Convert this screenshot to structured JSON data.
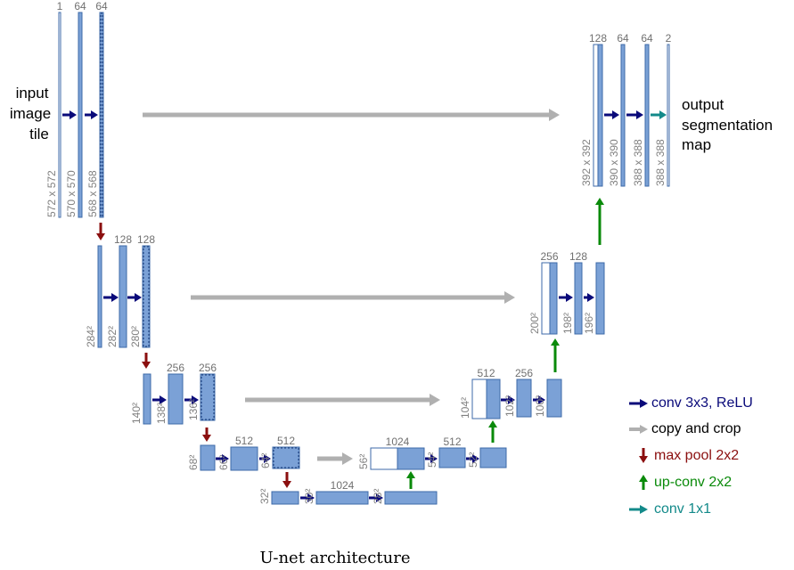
{
  "title": "U-net architecture",
  "input_label": [
    "input",
    "image",
    "tile"
  ],
  "output_label": [
    "output",
    "segmentation",
    "map"
  ],
  "colors": {
    "block_fill": "#7ba1d6",
    "block_stroke": "#3c6aa8",
    "conv": "#0a0a7a",
    "copy": "#b0b0b0",
    "pool": "#8b0f0f",
    "upconv": "#0a8a0a",
    "conv1x1": "#138a8a"
  },
  "blocks": [
    {
      "id": "L1a",
      "channels": "1",
      "size": "572 x 572"
    },
    {
      "id": "L1b",
      "channels": "64",
      "size": "570 x 570"
    },
    {
      "id": "L1c",
      "channels": "64",
      "size": "568 x 568"
    },
    {
      "id": "L2a",
      "channels": "",
      "size": "284²"
    },
    {
      "id": "L2b",
      "channels": "128",
      "size": "282²"
    },
    {
      "id": "L2c",
      "channels": "128",
      "size": "280²"
    },
    {
      "id": "L3a",
      "channels": "",
      "size": "140²"
    },
    {
      "id": "L3b",
      "channels": "256",
      "size": "138²"
    },
    {
      "id": "L3c",
      "channels": "256",
      "size": "136²"
    },
    {
      "id": "L4a",
      "channels": "",
      "size": "68²"
    },
    {
      "id": "L4b",
      "channels": "512",
      "size": "66²"
    },
    {
      "id": "L4c",
      "channels": "512",
      "size": "64²"
    },
    {
      "id": "B1",
      "channels": "",
      "size": "32²"
    },
    {
      "id": "B2",
      "channels": "1024",
      "size": "30²"
    },
    {
      "id": "B3",
      "channels": "",
      "size": "28²"
    },
    {
      "id": "U4a",
      "channels": "1024",
      "size": "56²"
    },
    {
      "id": "U4b",
      "channels": "512",
      "size": "54²"
    },
    {
      "id": "U4c",
      "channels": "",
      "size": "52²"
    },
    {
      "id": "U3a",
      "channels": "512",
      "size": "104²"
    },
    {
      "id": "U3b",
      "channels": "256",
      "size": "102²"
    },
    {
      "id": "U3c",
      "channels": "",
      "size": "100²"
    },
    {
      "id": "U2a",
      "channels": "256",
      "size": "200²"
    },
    {
      "id": "U2b",
      "channels": "128",
      "size": "198²"
    },
    {
      "id": "U2c",
      "channels": "",
      "size": "196²"
    },
    {
      "id": "U1a",
      "channels": "128",
      "size": "392 x 392"
    },
    {
      "id": "U1b",
      "channels": "64",
      "size": "390 x 390"
    },
    {
      "id": "U1c",
      "channels": "64",
      "size": "388 x 388"
    },
    {
      "id": "U1d",
      "channels": "2",
      "size": "388 x 388"
    }
  ],
  "legend": [
    {
      "type": "conv",
      "label": "conv 3x3, ReLU"
    },
    {
      "type": "copy",
      "label": "copy and crop"
    },
    {
      "type": "pool",
      "label": "max pool 2x2"
    },
    {
      "type": "upconv",
      "label": "up-conv 2x2"
    },
    {
      "type": "conv1x1",
      "label": "conv 1x1"
    }
  ]
}
